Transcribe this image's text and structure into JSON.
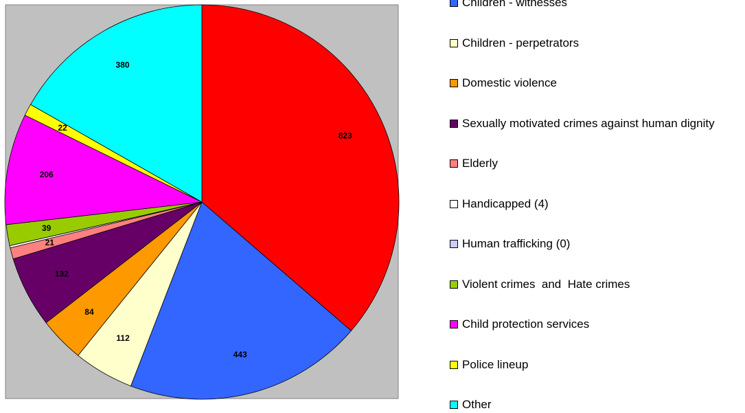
{
  "chart_data": {
    "type": "pie",
    "categories": [
      null,
      "Children - witnesses",
      "Children - perpetrators",
      "Domestic violence",
      "Sexually motivated crimes against human dignity",
      "Elderly",
      "Handicapped (4)",
      "Human trafficking (0)",
      "Violent crimes  and  Hate crimes",
      "Child protection services",
      "Police lineup",
      "Other"
    ],
    "values": [
      823,
      443,
      112,
      84,
      132,
      21,
      4,
      0,
      39,
      206,
      22,
      380
    ],
    "value_labels": [
      "823",
      "443",
      "112",
      "84",
      "132",
      "21",
      null,
      null,
      "39",
      "206",
      "22",
      "380"
    ],
    "colors": [
      "#ff0000",
      "#3366ff",
      "#ffffcc",
      "#ff9900",
      "#660066",
      "#ff8080",
      "#ffffff",
      "#ccccff",
      "#99cc00",
      "#ff00ff",
      "#ffff00",
      "#00ffff"
    ],
    "legend": "right"
  }
}
